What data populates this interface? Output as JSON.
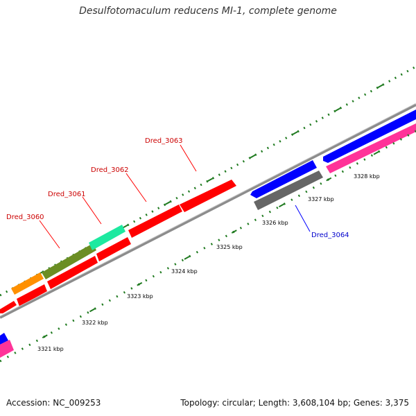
{
  "title": "Desulfotomaculum reducens MI-1, complete genome",
  "footer": {
    "accession": "Accession: NC_009253",
    "summary": "Topology: circular; Length: 3,608,104 bp; Genes: 3,375"
  },
  "colors": {
    "backbone": "#8c8c8c",
    "tick": "#1f7a1f",
    "forward_gene": "#ff0000",
    "reverse_gene": "#0000ff",
    "label_forward": "#cc0000",
    "label_reverse": "#0000cc"
  },
  "scale_labels": [
    {
      "text": "3321 kbp",
      "kbp": 3321
    },
    {
      "text": "3322 kbp",
      "kbp": 3322
    },
    {
      "text": "3323 kbp",
      "kbp": 3323
    },
    {
      "text": "3324 kbp",
      "kbp": 3324
    },
    {
      "text": "3325 kbp",
      "kbp": 3325
    },
    {
      "text": "3326 kbp",
      "kbp": 3326
    },
    {
      "text": "3327 kbp",
      "kbp": 3327
    },
    {
      "text": "3328 kbp",
      "kbp": 3328
    }
  ],
  "gene_labels": [
    {
      "text": "Dred_3060",
      "strand": "forward"
    },
    {
      "text": "Dred_3061",
      "strand": "forward"
    },
    {
      "text": "Dred_3062",
      "strand": "forward"
    },
    {
      "text": "Dred_3063",
      "strand": "forward"
    },
    {
      "text": "Dred_3064",
      "strand": "reverse"
    }
  ]
}
